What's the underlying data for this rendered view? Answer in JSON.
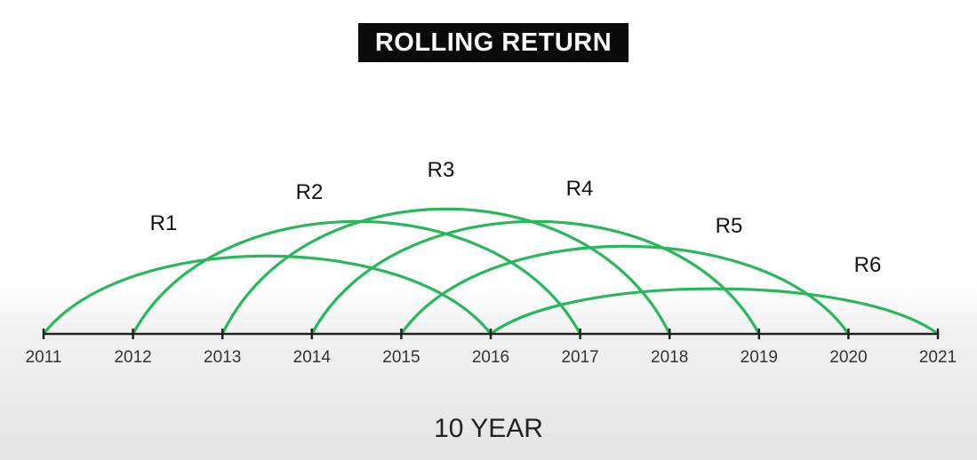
{
  "title": "ROLLING RETURN",
  "footer": "10 YEAR",
  "colors": {
    "arc": "#27b85a",
    "title_bg": "#0a0a0a",
    "axis": "#222222"
  },
  "years": [
    "2011",
    "2012",
    "2013",
    "2014",
    "2015",
    "2016",
    "2017",
    "2018",
    "2019",
    "2020",
    "2021"
  ],
  "rolling_periods": [
    {
      "label": "R1",
      "start": "2011",
      "end": "2016"
    },
    {
      "label": "R2",
      "start": "2012",
      "end": "2017"
    },
    {
      "label": "R3",
      "start": "2013",
      "end": "2018"
    },
    {
      "label": "R4",
      "start": "2014",
      "end": "2019"
    },
    {
      "label": "R5",
      "start": "2015",
      "end": "2020"
    },
    {
      "label": "R6",
      "start": "2016",
      "end": "2021"
    }
  ]
}
